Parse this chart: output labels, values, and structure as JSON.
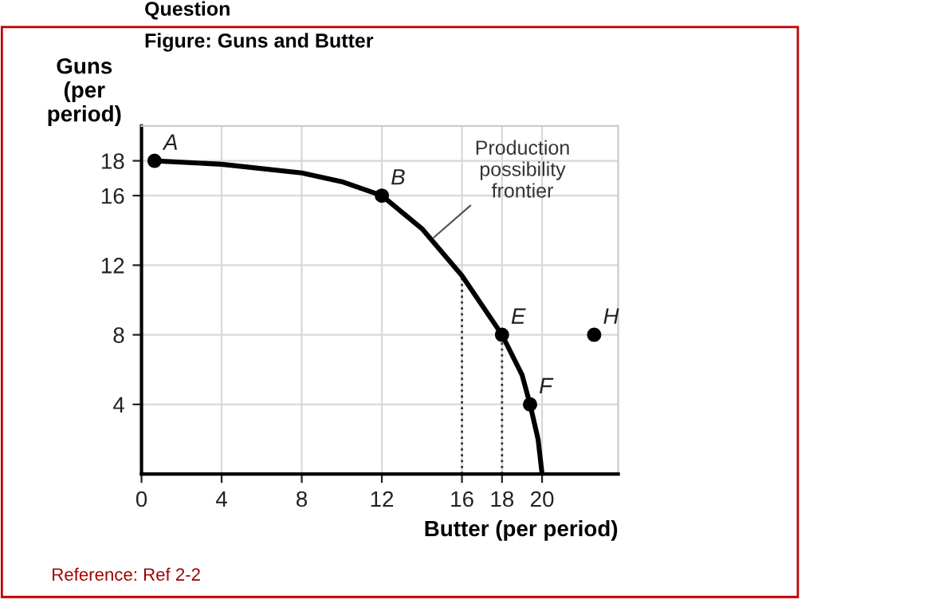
{
  "chart_data": {
    "type": "line",
    "title": "Figure: Guns and Butter",
    "xlabel": "Butter (per period)",
    "ylabel": "Guns\n(per\nperiod)",
    "annotations": [
      "Question",
      "Reference: Ref 2-2",
      {
        "text": "A",
        "x": 0.65,
        "y": 18
      },
      {
        "text": "B",
        "x": 12,
        "y": 16
      },
      {
        "text": "E",
        "x": 18,
        "y": 8
      },
      {
        "text": "F",
        "x": 19.4,
        "y": 4
      },
      {
        "text": "H",
        "x": 22.6,
        "y": 8
      },
      {
        "text": "Production\npossibility\nfrontier",
        "x": 14.6,
        "y": 13.6
      }
    ],
    "series": [
      {
        "color": "#000000",
        "marker": "none",
        "x": [
          0.65,
          4,
          8,
          10,
          12,
          14,
          16,
          18,
          19,
          19.4,
          19.8,
          20
        ],
        "values": [
          18,
          17.8,
          17.3,
          16.8,
          16,
          14.1,
          11.4,
          8,
          5.7,
          4,
          2,
          0
        ]
      },
      {
        "type": "scatter",
        "color": "#000000",
        "marker": "circle",
        "x": [
          0.65,
          12,
          18,
          19.4,
          22.6
        ],
        "values": [
          18,
          16,
          8,
          4,
          8
        ]
      }
    ],
    "xlim": [
      0,
      23.8
    ],
    "ylim": [
      0,
      20
    ],
    "xticks": [
      0,
      4,
      8,
      12,
      16,
      18,
      20
    ],
    "yticks": [
      4,
      8,
      12,
      16,
      18
    ],
    "ref_lines": [
      {
        "axis": "x",
        "value": 16,
        "line_style": "dotted",
        "color": "#333333"
      },
      {
        "axis": "x",
        "value": 18,
        "line_style": "dotted",
        "color": "#333333"
      }
    ],
    "grid": true
  }
}
